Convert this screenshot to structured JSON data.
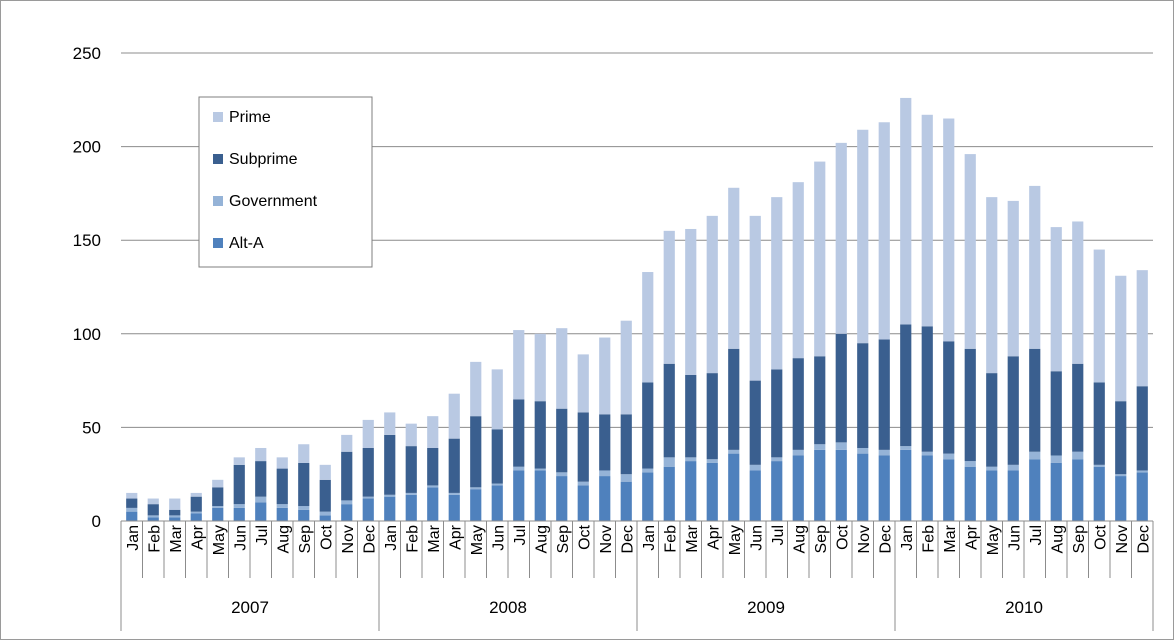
{
  "chart_data": {
    "type": "bar",
    "stacked": true,
    "title": "",
    "xlabel": "",
    "ylabel": "",
    "ylim": [
      0,
      250
    ],
    "yticks": [
      0,
      50,
      100,
      150,
      200,
      250
    ],
    "grid": "horizontal",
    "legend_placement": "top-left",
    "years": [
      "2007",
      "2008",
      "2009",
      "2010"
    ],
    "categories": [
      "Jan",
      "Feb",
      "Mar",
      "Apr",
      "May",
      "Jun",
      "Jul",
      "Aug",
      "Sep",
      "Oct",
      "Nov",
      "Dec",
      "Jan",
      "Feb",
      "Mar",
      "Apr",
      "May",
      "Jun",
      "Jul",
      "Aug",
      "Sep",
      "Oct",
      "Nov",
      "Dec",
      "Jan",
      "Feb",
      "Mar",
      "Apr",
      "May",
      "Jun",
      "Jul",
      "Aug",
      "Sep",
      "Oct",
      "Nov",
      "Dec",
      "Jan",
      "Feb",
      "Mar",
      "Apr",
      "May",
      "Jun",
      "Jul",
      "Aug",
      "Sep",
      "Oct",
      "Nov",
      "Dec"
    ],
    "series": [
      {
        "name": "Alt-A",
        "color": "#4f81bd",
        "values": [
          5,
          2,
          2,
          4,
          7,
          7,
          10,
          7,
          6,
          3,
          9,
          12,
          13,
          14,
          18,
          14,
          17,
          19,
          27,
          27,
          24,
          19,
          24,
          21,
          26,
          29,
          32,
          31,
          36,
          27,
          32,
          35,
          38,
          38,
          36,
          35,
          38,
          35,
          33,
          29,
          27,
          27,
          33,
          31,
          33,
          29,
          24,
          26
        ]
      },
      {
        "name": "Government",
        "color": "#95b3d7",
        "values": [
          2,
          1,
          1,
          1,
          1,
          2,
          3,
          2,
          2,
          2,
          2,
          1,
          1,
          1,
          1,
          1,
          1,
          1,
          2,
          1,
          2,
          2,
          3,
          4,
          2,
          5,
          2,
          2,
          2,
          3,
          2,
          3,
          3,
          4,
          3,
          3,
          2,
          2,
          3,
          3,
          2,
          3,
          4,
          4,
          4,
          1,
          1,
          1
        ]
      },
      {
        "name": "Subprime",
        "color": "#3a5f8f",
        "values": [
          5,
          6,
          3,
          8,
          10,
          21,
          19,
          19,
          23,
          17,
          26,
          26,
          32,
          25,
          20,
          29,
          38,
          29,
          36,
          36,
          34,
          37,
          30,
          32,
          46,
          50,
          44,
          46,
          54,
          45,
          47,
          49,
          47,
          58,
          56,
          59,
          65,
          67,
          60,
          60,
          50,
          58,
          55,
          45,
          47,
          44,
          39,
          45
        ]
      },
      {
        "name": "Prime",
        "color": "#b9c9e3",
        "values": [
          3,
          3,
          6,
          2,
          4,
          4,
          7,
          6,
          10,
          8,
          9,
          15,
          12,
          12,
          17,
          24,
          29,
          32,
          37,
          36,
          43,
          31,
          41,
          50,
          59,
          71,
          78,
          84,
          86,
          88,
          92,
          94,
          104,
          102,
          114,
          116,
          121,
          113,
          119,
          104,
          94,
          83,
          87,
          77,
          76,
          71,
          67,
          62
        ]
      }
    ]
  }
}
